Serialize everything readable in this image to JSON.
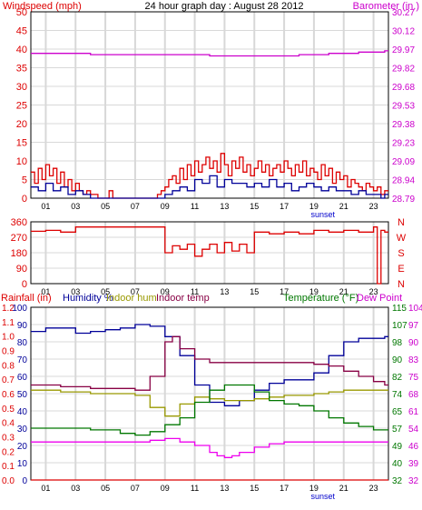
{
  "header": {
    "windspeed_label": "Windspeed (mph)",
    "title": "24 hour graph day : August 28 2012",
    "barometer_label": "Barometer (in.)"
  },
  "colors": {
    "frame": "#000000",
    "grid": "#d8d8d8",
    "red": "#dd0000",
    "navy": "#000099",
    "magenta": "#cc00cc",
    "green": "#007700",
    "olive": "#999900",
    "purple": "#880044",
    "pink": "#ee00ee",
    "blue": "#0000cc"
  },
  "chart_data": [
    {
      "id": "wind",
      "type": "line",
      "title": "24 hour graph day : August 28 2012",
      "x_ticks": [
        "01",
        "03",
        "05",
        "07",
        "09",
        "11",
        "13",
        "15",
        "17",
        "19",
        "21",
        "23"
      ],
      "x_annotation": "sunset",
      "xlim": [
        0,
        24
      ],
      "left_axis": {
        "label": "Windspeed (mph)",
        "ticks": [
          "0",
          "5",
          "10",
          "15",
          "20",
          "25",
          "30",
          "35",
          "40",
          "45",
          "50"
        ],
        "ylim": [
          0,
          50
        ]
      },
      "right_axis": {
        "label": "Barometer (in.)",
        "ticks": [
          "28.79",
          "28.94",
          "29.09",
          "29.23",
          "29.38",
          "29.53",
          "29.68",
          "29.82",
          "29.97",
          "30.12",
          "30.27"
        ],
        "ylim": [
          28.79,
          30.27
        ]
      },
      "series": [
        {
          "name": "Windspeed (mph)",
          "color": "#dd0000",
          "axis": "left",
          "x": [
            0,
            0.25,
            0.5,
            0.75,
            1,
            1.25,
            1.5,
            1.75,
            2,
            2.25,
            2.5,
            2.75,
            3,
            3.25,
            3.5,
            3.75,
            4,
            4.5,
            5,
            5.25,
            5.5,
            6,
            7,
            8,
            8.5,
            8.75,
            9,
            9.25,
            9.5,
            9.75,
            10,
            10.25,
            10.5,
            10.75,
            11,
            11.25,
            11.5,
            11.75,
            12,
            12.25,
            12.5,
            12.75,
            13,
            13.25,
            13.5,
            13.75,
            14,
            14.25,
            14.5,
            14.75,
            15,
            15.25,
            15.5,
            15.75,
            16,
            16.25,
            16.5,
            16.75,
            17,
            17.25,
            17.5,
            17.75,
            18,
            18.25,
            18.5,
            18.75,
            19,
            19.25,
            19.5,
            19.75,
            20,
            20.25,
            20.5,
            20.75,
            21,
            21.25,
            21.5,
            21.75,
            22,
            22.25,
            22.5,
            22.75,
            23,
            23.25,
            23.5,
            23.75
          ],
          "y": [
            7,
            4,
            8,
            5,
            9,
            6,
            8,
            4,
            7,
            3,
            5,
            2,
            4,
            2,
            1,
            2,
            1,
            0,
            0,
            2,
            0,
            0,
            0,
            0,
            1,
            2,
            3,
            5,
            6,
            4,
            8,
            5,
            9,
            6,
            10,
            7,
            9,
            11,
            8,
            10,
            7,
            12,
            9,
            6,
            10,
            8,
            11,
            7,
            9,
            6,
            8,
            10,
            7,
            9,
            6,
            8,
            9,
            7,
            10,
            8,
            6,
            9,
            7,
            10,
            6,
            8,
            7,
            5,
            9,
            6,
            8,
            4,
            7,
            5,
            6,
            3,
            5,
            4,
            3,
            2,
            4,
            3,
            2,
            3,
            1,
            2
          ]
        },
        {
          "name": "Wind gust",
          "color": "#000099",
          "axis": "left",
          "x": [
            0,
            0.5,
            1,
            1.5,
            2,
            2.5,
            3,
            3.5,
            4,
            5,
            6,
            7,
            8,
            8.5,
            9,
            9.5,
            10,
            10.5,
            11,
            11.5,
            12,
            12.5,
            13,
            13.5,
            14,
            14.5,
            15,
            15.5,
            16,
            16.5,
            17,
            17.5,
            18,
            18.5,
            19,
            19.5,
            20,
            20.5,
            21,
            21.5,
            22,
            22.5,
            23,
            23.5,
            23.75
          ],
          "y": [
            3,
            2,
            4,
            2,
            3,
            1,
            2,
            1,
            0,
            0,
            0,
            0,
            0,
            0,
            1,
            2,
            3,
            2,
            5,
            4,
            6,
            3,
            5,
            4,
            4,
            3,
            4,
            3,
            5,
            3,
            4,
            2,
            3,
            4,
            3,
            2,
            3,
            2,
            2,
            1,
            2,
            1,
            1,
            0,
            1
          ]
        },
        {
          "name": "Barometer (in.)",
          "color": "#cc00cc",
          "axis": "right",
          "x": [
            0,
            2,
            4,
            6,
            8,
            10,
            12,
            14,
            15,
            16,
            18,
            20,
            22,
            23.75
          ],
          "y": [
            29.94,
            29.94,
            29.93,
            29.93,
            29.93,
            29.93,
            29.92,
            29.92,
            29.92,
            29.92,
            29.93,
            29.94,
            29.95,
            29.96
          ]
        }
      ]
    },
    {
      "id": "direction",
      "type": "line",
      "x_ticks": [
        "01",
        "03",
        "05",
        "07",
        "09",
        "11",
        "13",
        "15",
        "17",
        "19",
        "21",
        "23"
      ],
      "xlim": [
        0,
        24
      ],
      "left_axis": {
        "ticks": [
          "360",
          "270",
          "180",
          "90",
          "0"
        ],
        "ylim": [
          0,
          360
        ]
      },
      "right_axis": {
        "ticks": [
          "N",
          "W",
          "S",
          "E",
          "N"
        ]
      },
      "series": [
        {
          "name": "Wind direction",
          "color": "#dd0000",
          "x": [
            0,
            1,
            2,
            3,
            4,
            5,
            6,
            7,
            8,
            8.5,
            9,
            9.5,
            10,
            10.5,
            11,
            11.5,
            12,
            12.5,
            13,
            13.5,
            14,
            14.5,
            15,
            16,
            17,
            18,
            19,
            20,
            21,
            22,
            23,
            23.25,
            23.5,
            23.75
          ],
          "y": [
            305,
            310,
            300,
            330,
            330,
            330,
            330,
            330,
            330,
            330,
            180,
            220,
            200,
            230,
            160,
            200,
            230,
            180,
            240,
            190,
            230,
            180,
            300,
            290,
            300,
            290,
            310,
            300,
            310,
            300,
            330,
            0,
            310,
            300
          ]
        }
      ]
    },
    {
      "id": "climate",
      "type": "line",
      "x_ticks": [
        "01",
        "03",
        "05",
        "07",
        "09",
        "11",
        "13",
        "15",
        "17",
        "19",
        "21",
        "23"
      ],
      "x_annotation": "sunset",
      "xlim": [
        0,
        24
      ],
      "legend": [
        "Rainfall (in)",
        "Humidity %",
        "Indoor hum",
        "Indoor temp",
        "Temperature (°F)",
        "Dew Point"
      ],
      "axis_rainfall": {
        "label": "Rainfall (in)",
        "ticks": [
          "0.0",
          "0.1",
          "0.2",
          "0.3",
          "0.4",
          "0.5",
          "0.6",
          "0.7",
          "0.8",
          "0.9",
          "1.0",
          "1.1",
          "1.2"
        ]
      },
      "axis_humidity": {
        "label": "Humidity %",
        "ticks": [
          "0",
          "10",
          "20",
          "30",
          "40",
          "50",
          "60",
          "70",
          "80",
          "90",
          "100"
        ],
        "ylim": [
          0,
          100
        ]
      },
      "axis_temperature": {
        "label": "Temperature (°F)",
        "ticks": [
          "32",
          "40",
          "49",
          "57",
          "65",
          "74",
          "82",
          "90",
          "98",
          "107",
          "115"
        ]
      },
      "axis_dewpoint": {
        "label": "Dew Point",
        "ticks": [
          "32",
          "39",
          "46",
          "54",
          "61",
          "68",
          "75",
          "83",
          "90",
          "97",
          "104"
        ]
      },
      "series": [
        {
          "name": "Humidity %",
          "color": "#000099",
          "x": [
            0,
            1,
            2,
            3,
            4,
            5,
            6,
            7,
            8,
            9,
            10,
            11,
            12,
            13,
            14,
            15,
            16,
            17,
            18,
            19,
            20,
            21,
            22,
            23,
            23.75
          ],
          "y": [
            86,
            88,
            88,
            85,
            86,
            87,
            88,
            90,
            89,
            83,
            72,
            55,
            45,
            43,
            46,
            52,
            56,
            58,
            58,
            62,
            72,
            80,
            82,
            82,
            83
          ]
        },
        {
          "name": "Indoor hum",
          "color": "#999900",
          "x": [
            0,
            2,
            4,
            6,
            7,
            8,
            9,
            10,
            11,
            12,
            13,
            14,
            15,
            16,
            17,
            18,
            19,
            20,
            21,
            22,
            23,
            23.75
          ],
          "y": [
            52,
            51,
            50,
            50,
            49,
            42,
            37,
            44,
            48,
            47,
            46,
            46,
            47,
            48,
            49,
            49,
            50,
            51,
            52,
            52,
            52,
            52
          ]
        },
        {
          "name": "Indoor temp",
          "color": "#880044",
          "x": [
            0,
            2,
            4,
            6,
            7,
            8,
            9,
            9.5,
            10,
            11,
            12,
            13,
            14,
            15,
            16,
            17,
            18,
            19,
            20,
            21,
            22,
            23,
            23.75
          ],
          "y": [
            55,
            54,
            53,
            53,
            52,
            60,
            80,
            83,
            76,
            70,
            68,
            68,
            68,
            68,
            68,
            68,
            68,
            67,
            66,
            63,
            60,
            57,
            55
          ]
        },
        {
          "name": "Temperature (°F)",
          "color": "#007700",
          "x": [
            0,
            2,
            4,
            6,
            7,
            8,
            9,
            10,
            11,
            12,
            13,
            14,
            15,
            16,
            17,
            18,
            19,
            20,
            21,
            22,
            23,
            23.75
          ],
          "y": [
            30,
            30,
            29,
            27,
            26,
            28,
            32,
            36,
            45,
            52,
            55,
            55,
            51,
            46,
            44,
            43,
            40,
            36,
            33,
            31,
            29,
            29
          ]
        },
        {
          "name": "Dew Point",
          "color": "#ee00ee",
          "x": [
            0,
            2,
            4,
            6,
            7,
            8,
            9,
            10,
            11,
            12,
            12.5,
            13,
            13.5,
            14,
            15,
            16,
            17,
            18,
            19,
            20,
            21,
            22,
            23,
            23.75
          ],
          "y": [
            22,
            22,
            22,
            22,
            22,
            23,
            24,
            22,
            20,
            16,
            14,
            13,
            14,
            16,
            19,
            21,
            22,
            22,
            22,
            22,
            22,
            22,
            22,
            22
          ]
        },
        {
          "name": "Rainfall (in)",
          "color": "#dd0000",
          "x": [
            0,
            23.75
          ],
          "y": [
            0,
            0
          ]
        }
      ]
    }
  ]
}
